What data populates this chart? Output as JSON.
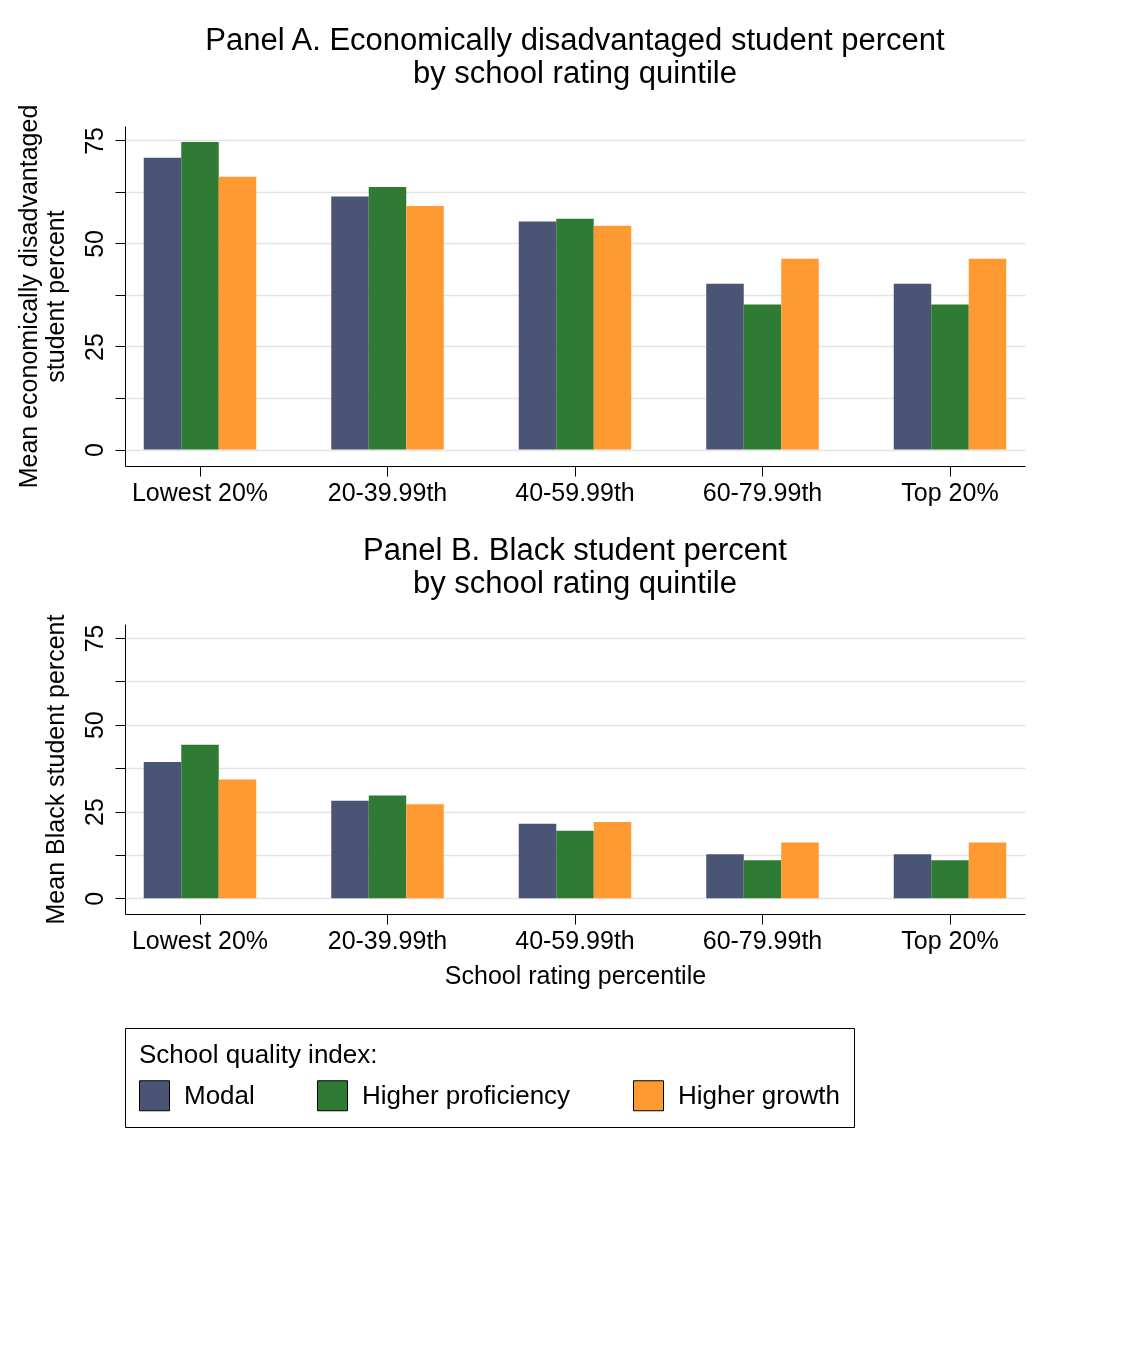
{
  "chart_data": [
    {
      "type": "bar",
      "title": "Panel A. Economically disadvantaged student percent\nby school rating quintile",
      "ylabel": "Mean economically disadvantaged\nstudent percent",
      "categories": [
        "Lowest 20%",
        "20-39.99th",
        "40-59.99th",
        "60-79.99th",
        "Top 20%"
      ],
      "series": [
        {
          "name": "Modal",
          "color": "#4a5475",
          "values": [
            70.8,
            61.4,
            55.3,
            40.2,
            40.2
          ]
        },
        {
          "name": "Higher proficiency",
          "color": "#2f7b33",
          "values": [
            74.6,
            63.7,
            56,
            35.2,
            35.2
          ]
        },
        {
          "name": "Higher growth",
          "color": "#ff9a33",
          "values": [
            66.2,
            59.1,
            54.3,
            46.3,
            46.3
          ]
        }
      ],
      "ylim": [
        -4,
        78.5
      ],
      "yticks": [
        0,
        {
          "value": 12.5,
          "label": null
        },
        25,
        {
          "value": 37.5,
          "label": null
        },
        50,
        {
          "value": 62.5,
          "label": null
        },
        75
      ],
      "grid": "y",
      "legend": "bottom"
    },
    {
      "type": "bar",
      "title": "Panel B. Black student percent\nby school rating quintile",
      "xlabel": "School rating percentile",
      "ylabel": "Mean Black student percent",
      "legend_title": "School quality index:",
      "categories": [
        "Lowest 20%",
        "20-39.99th",
        "40-59.99th",
        "60-79.99th",
        "Top 20%"
      ],
      "series": [
        {
          "name": "Modal",
          "color": "#4a5475",
          "values": [
            39.3,
            28.1,
            21.5,
            12.7,
            12.7
          ]
        },
        {
          "name": "Higher proficiency",
          "color": "#2f7b33",
          "values": [
            44.2,
            29.6,
            19.5,
            11,
            11
          ]
        },
        {
          "name": "Higher growth",
          "color": "#ff9a33",
          "values": [
            34.2,
            27.1,
            22,
            16.1,
            16.1
          ]
        }
      ],
      "ylim": [
        -4.5,
        79
      ],
      "yticks": [
        0,
        {
          "value": 12.5,
          "label": null
        },
        25,
        {
          "value": 37.5,
          "label": null
        },
        50,
        {
          "value": 62.5,
          "label": null
        },
        75
      ],
      "grid": "y",
      "legend": "bottom"
    }
  ]
}
